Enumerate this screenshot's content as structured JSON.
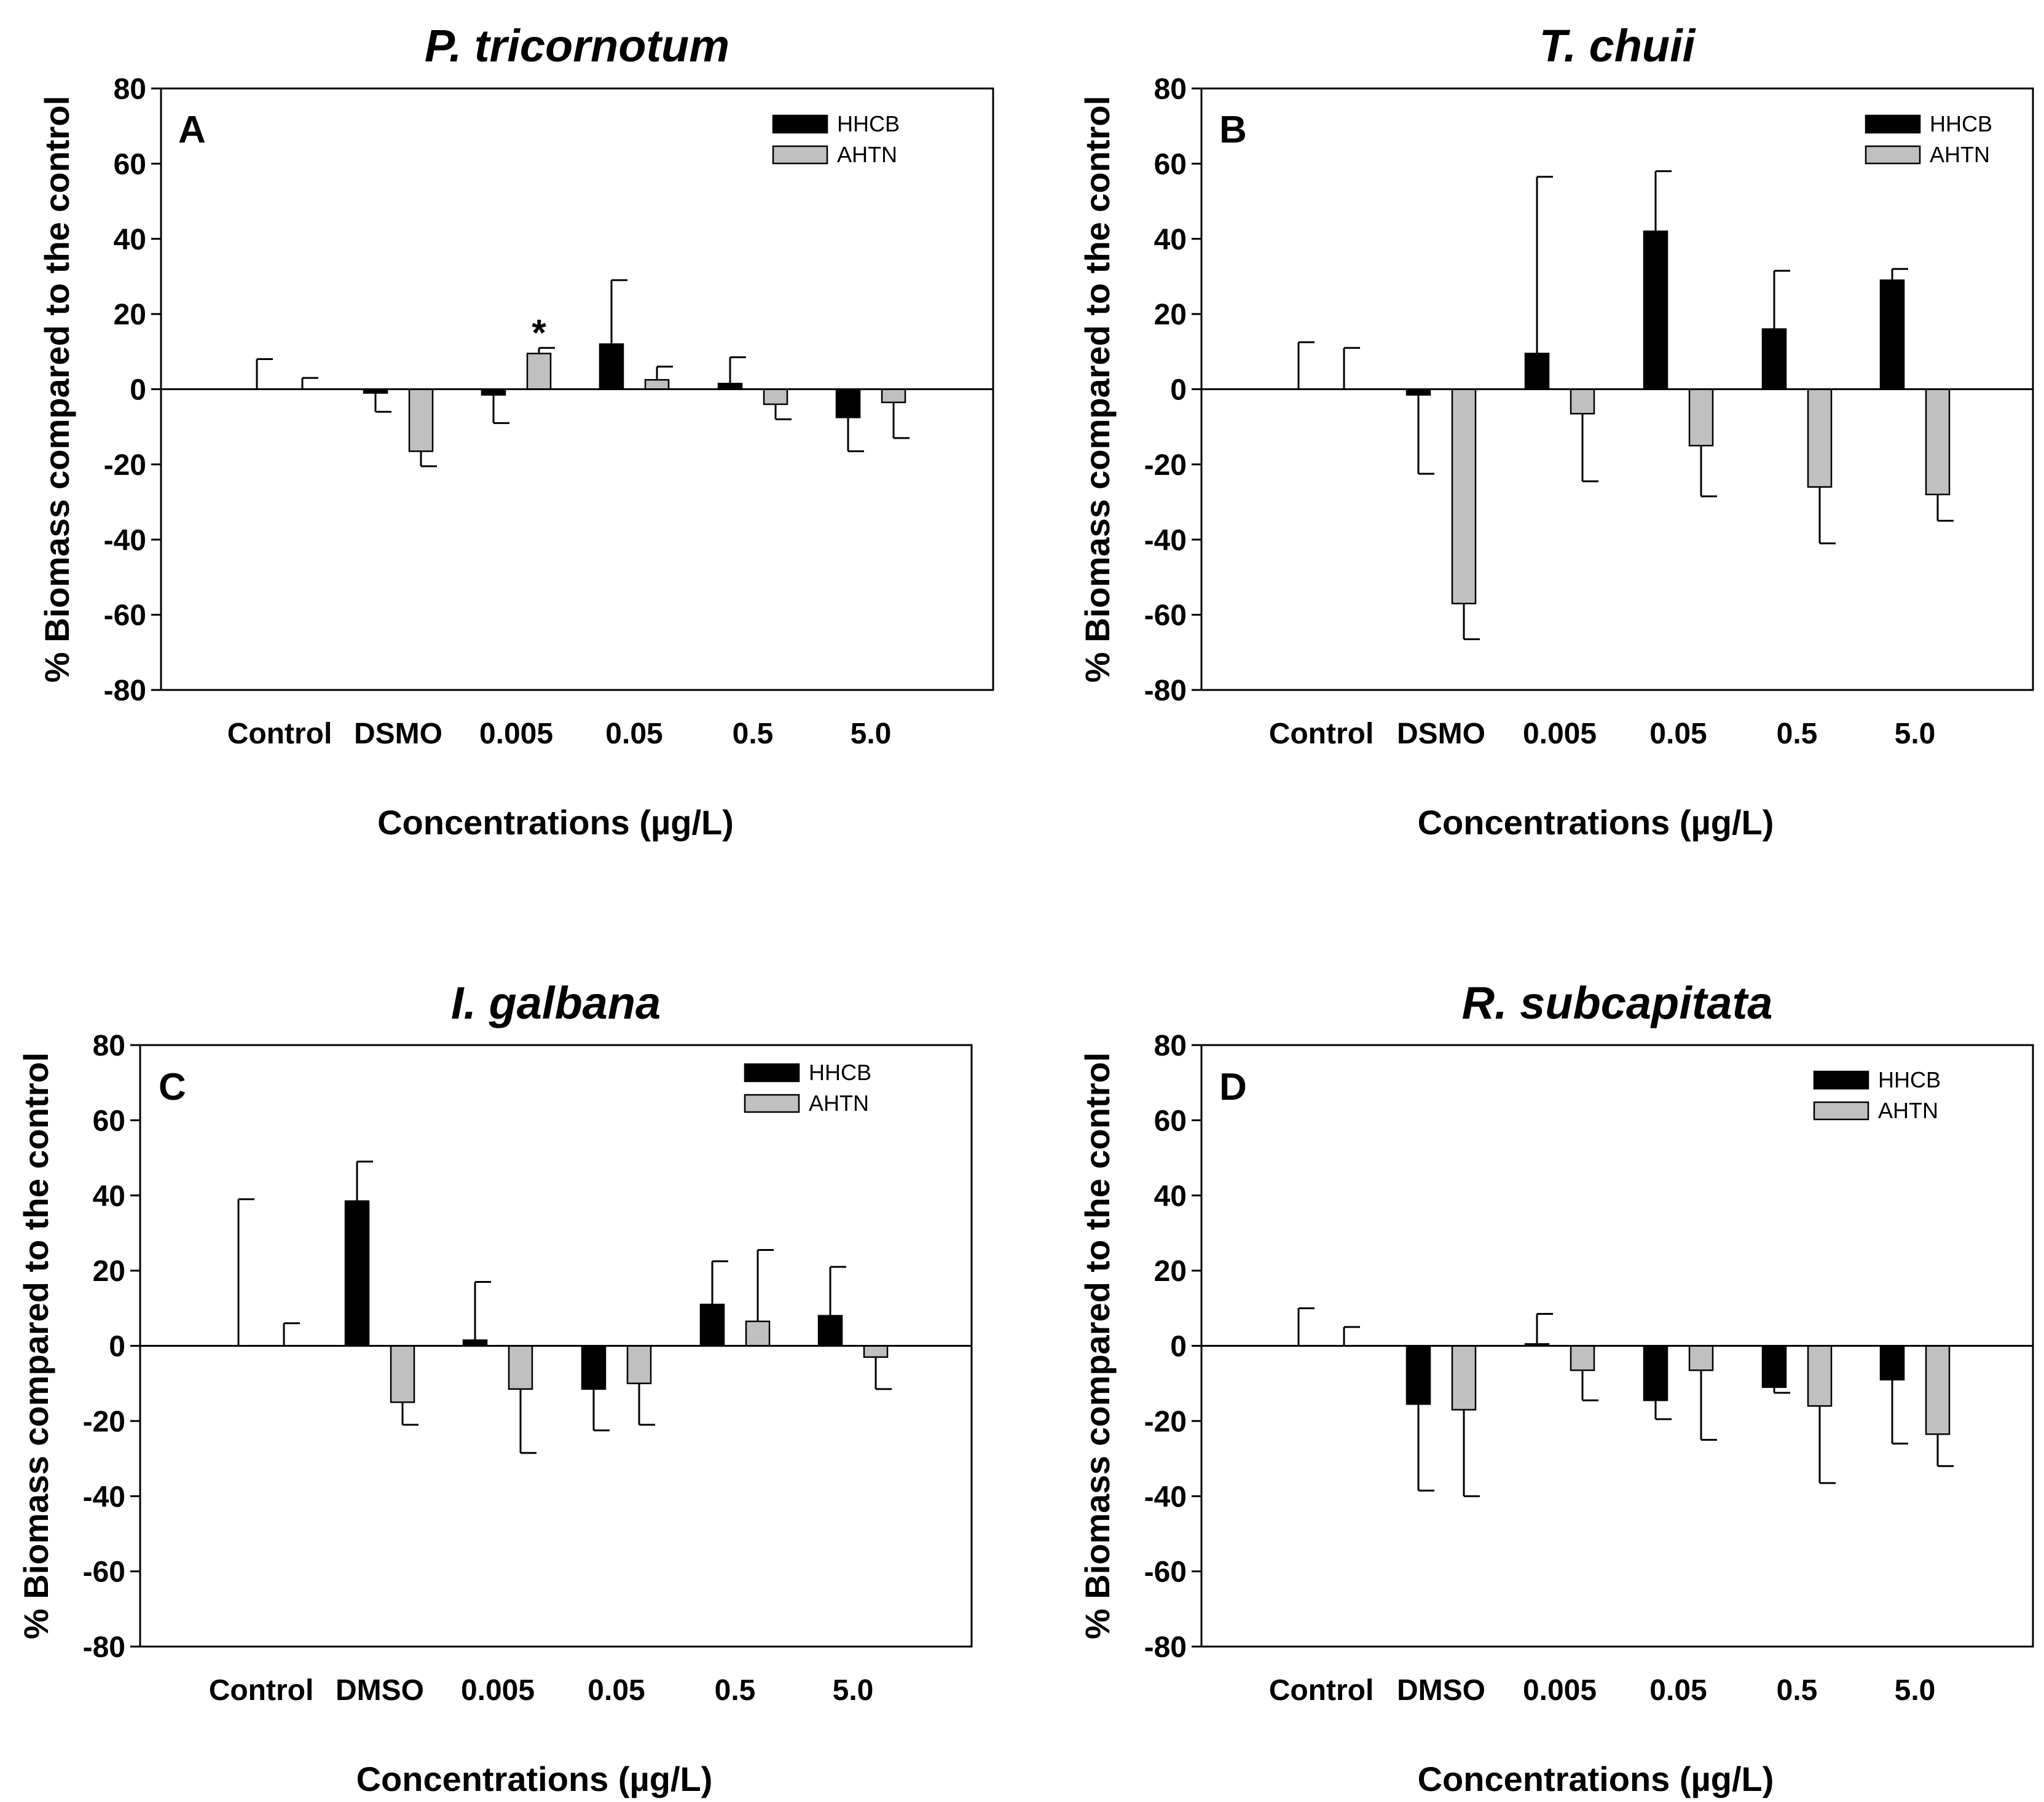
{
  "chart_data": [
    {
      "type": "bar",
      "panel": "A",
      "title": "P. tricornotum",
      "xlabel": "Concentrations (µg/L)",
      "ylabel": "% Biomass compared to the control",
      "ylim": [
        -80,
        80
      ],
      "yticks": [
        80,
        60,
        40,
        20,
        0,
        -20,
        -40,
        -60,
        -80
      ],
      "categories": [
        "Control",
        "DSMO",
        "0.005",
        "0.05",
        "0.5",
        "5.0"
      ],
      "series": [
        {
          "name": "HHCB",
          "color": "#000000",
          "values": [
            0,
            -1,
            -1.5,
            12,
            1.5,
            -7.5
          ],
          "errors": [
            8,
            5,
            7.5,
            17,
            7,
            9
          ]
        },
        {
          "name": "AHTN",
          "color": "#c0c0c0",
          "values": [
            0,
            -16.5,
            9.5,
            2.5,
            -4,
            -3.5
          ],
          "errors": [
            3,
            4,
            1.5,
            3.5,
            4,
            9.5
          ]
        }
      ],
      "annotations": [
        {
          "category": "0.005",
          "series": "AHTN",
          "text": "*"
        }
      ],
      "legend": "top-right",
      "grid": false
    },
    {
      "type": "bar",
      "panel": "B",
      "title": "T. chuii",
      "xlabel": "Concentrations (µg/L)",
      "ylabel": "% Biomass compared to the control",
      "ylim": [
        -80,
        80
      ],
      "yticks": [
        80,
        60,
        40,
        20,
        0,
        -20,
        -40,
        -60,
        -80
      ],
      "categories": [
        "Control",
        "DSMO",
        "0.005",
        "0.05",
        "0.5",
        "5.0"
      ],
      "series": [
        {
          "name": "HHCB",
          "color": "#000000",
          "values": [
            0,
            -1.5,
            9.5,
            42,
            16,
            29
          ],
          "errors": [
            12.5,
            21,
            47,
            16,
            15.5,
            3
          ]
        },
        {
          "name": "AHTN",
          "color": "#c0c0c0",
          "values": [
            0,
            -57,
            -6.5,
            -15,
            -26,
            -28
          ],
          "errors": [
            11,
            9.5,
            18,
            13.5,
            15,
            7
          ]
        }
      ],
      "annotations": [],
      "legend": "top-right",
      "grid": false
    },
    {
      "type": "bar",
      "panel": "C",
      "title": "I. galbana",
      "xlabel": "Concentrations (µg/L)",
      "ylabel": "% Biomass compared to the control",
      "ylim": [
        -80,
        80
      ],
      "yticks": [
        80,
        60,
        40,
        20,
        0,
        -20,
        -40,
        -60,
        -80
      ],
      "categories": [
        "Control",
        "DMSO",
        "0.005",
        "0.05",
        "0.5",
        "5.0"
      ],
      "series": [
        {
          "name": "HHCB",
          "color": "#000000",
          "values": [
            0,
            38.5,
            1.5,
            -11.5,
            11,
            8
          ],
          "errors": [
            39,
            10.5,
            15.5,
            11,
            11.5,
            13
          ]
        },
        {
          "name": "AHTN",
          "color": "#c0c0c0",
          "values": [
            0,
            -15,
            -11.5,
            -10,
            6.5,
            -3
          ],
          "errors": [
            6,
            6,
            17,
            11,
            19,
            8.5
          ]
        }
      ],
      "annotations": [],
      "legend": "top-right",
      "grid": false
    },
    {
      "type": "bar",
      "panel": "D",
      "title": "R. subcapitata",
      "xlabel": "Concentrations (µg/L)",
      "ylabel": "% Biomass compared to the control",
      "ylim": [
        -80,
        80
      ],
      "yticks": [
        80,
        60,
        40,
        20,
        0,
        -20,
        -40,
        -60,
        -80
      ],
      "categories": [
        "Control",
        "DMSO",
        "0.005",
        "0.05",
        "0.5",
        "5.0"
      ],
      "series": [
        {
          "name": "HHCB",
          "color": "#000000",
          "values": [
            0,
            -15.5,
            0.5,
            -14.5,
            -11,
            -9
          ],
          "errors": [
            10,
            23,
            8,
            5,
            1.5,
            17
          ]
        },
        {
          "name": "AHTN",
          "color": "#c0c0c0",
          "values": [
            0,
            -17,
            -6.5,
            -6.5,
            -16,
            -23.5
          ],
          "errors": [
            5,
            23,
            8,
            18.5,
            20.5,
            8.5
          ]
        }
      ],
      "annotations": [],
      "legend": "top-right",
      "grid": false
    }
  ]
}
